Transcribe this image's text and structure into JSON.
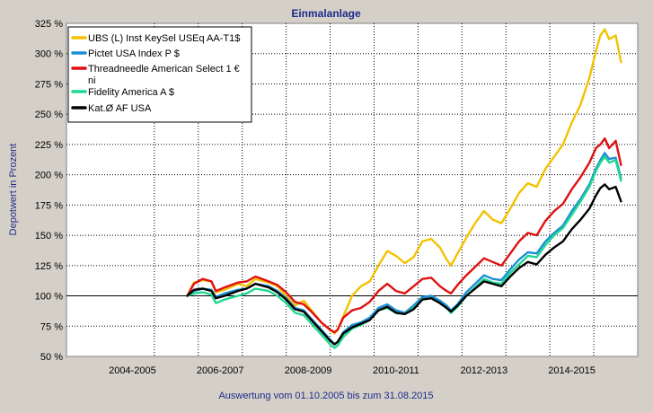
{
  "chart_data": {
    "type": "line",
    "title": "Einmalanlage",
    "subtitle": "Auswertung vom 01.10.2005 bis zum 31.08.2015",
    "ylabel": "Depotwert in Prozent",
    "xlabel": "",
    "ylim": [
      50,
      325
    ],
    "yticks": [
      50,
      75,
      100,
      125,
      150,
      175,
      200,
      225,
      250,
      275,
      300,
      325
    ],
    "ytick_labels": [
      "50 %",
      "75 %",
      "100 %",
      "125 %",
      "150 %",
      "175 %",
      "200 %",
      "225 %",
      "250 %",
      "275 %",
      "300 %",
      "325 %"
    ],
    "xlim": [
      2003.0,
      2016.0
    ],
    "x_gridlines": [
      2005,
      2006,
      2007,
      2008,
      2009,
      2010,
      2011,
      2012,
      2013,
      2014,
      2015
    ],
    "x_period_labels": [
      {
        "label": "2004-2005",
        "center": 2004.5
      },
      {
        "label": "2006-2007",
        "center": 2006.5
      },
      {
        "label": "2008-2009",
        "center": 2008.5
      },
      {
        "label": "2010-2011",
        "center": 2010.5
      },
      {
        "label": "2012-2013",
        "center": 2012.5
      },
      {
        "label": "2014-2015",
        "center": 2014.5
      }
    ],
    "baseline": 100,
    "grid": true,
    "legend_position": "top-left",
    "series": [
      {
        "name": "UBS (L) Inst KeySel USEq AA-T1$",
        "color": "#f2c200",
        "x": [
          2005.75,
          2005.9,
          2006.1,
          2006.3,
          2006.4,
          2006.6,
          2006.9,
          2007.1,
          2007.3,
          2007.6,
          2007.8,
          2008.0,
          2008.2,
          2008.4,
          2008.6,
          2008.8,
          2009.0,
          2009.1,
          2009.17,
          2009.3,
          2009.5,
          2009.7,
          2009.9,
          2010.1,
          2010.3,
          2010.5,
          2010.7,
          2010.9,
          2011.1,
          2011.3,
          2011.5,
          2011.65,
          2011.75,
          2011.9,
          2012.1,
          2012.3,
          2012.5,
          2012.7,
          2012.9,
          2013.1,
          2013.3,
          2013.5,
          2013.7,
          2013.9,
          2014.1,
          2014.3,
          2014.5,
          2014.7,
          2014.9,
          2015.05,
          2015.15,
          2015.25,
          2015.35,
          2015.5,
          2015.62
        ],
        "values": [
          100,
          111,
          113,
          112,
          103,
          105,
          110,
          108,
          114,
          111,
          108,
          100,
          92,
          96,
          87,
          78,
          72,
          69,
          72,
          83,
          100,
          108,
          112,
          125,
          137,
          133,
          127,
          132,
          145,
          147,
          140,
          130,
          125,
          135,
          148,
          160,
          170,
          163,
          160,
          172,
          185,
          193,
          190,
          205,
          215,
          225,
          243,
          258,
          280,
          302,
          315,
          320,
          312,
          315,
          293
        ]
      },
      {
        "name": "Pictet USA Index P $",
        "color": "#1a8fd6",
        "x": [
          2005.75,
          2005.9,
          2006.1,
          2006.3,
          2006.4,
          2006.6,
          2006.9,
          2007.1,
          2007.3,
          2007.6,
          2007.8,
          2008.0,
          2008.2,
          2008.4,
          2008.6,
          2008.8,
          2009.0,
          2009.1,
          2009.17,
          2009.3,
          2009.5,
          2009.7,
          2009.9,
          2010.1,
          2010.3,
          2010.5,
          2010.7,
          2010.9,
          2011.1,
          2011.3,
          2011.5,
          2011.65,
          2011.75,
          2011.9,
          2012.1,
          2012.3,
          2012.5,
          2012.7,
          2012.9,
          2013.1,
          2013.3,
          2013.5,
          2013.7,
          2013.9,
          2014.1,
          2014.3,
          2014.5,
          2014.7,
          2014.9,
          2015.05,
          2015.15,
          2015.25,
          2015.35,
          2015.5,
          2015.62
        ],
        "values": [
          100,
          104,
          106,
          105,
          99,
          102,
          105,
          106,
          110,
          108,
          104,
          98,
          90,
          88,
          80,
          72,
          64,
          60,
          62,
          70,
          76,
          78,
          82,
          90,
          93,
          88,
          86,
          92,
          99,
          100,
          96,
          92,
          88,
          93,
          103,
          110,
          117,
          114,
          113,
          122,
          130,
          136,
          135,
          145,
          152,
          158,
          170,
          180,
          192,
          205,
          212,
          218,
          213,
          214,
          197
        ]
      },
      {
        "name": "Threadneedle American Select 1 € ni",
        "color": "#e01010",
        "x": [
          2005.75,
          2005.9,
          2006.1,
          2006.3,
          2006.4,
          2006.6,
          2006.9,
          2007.1,
          2007.3,
          2007.6,
          2007.8,
          2008.0,
          2008.2,
          2008.4,
          2008.6,
          2008.8,
          2009.0,
          2009.1,
          2009.17,
          2009.3,
          2009.5,
          2009.7,
          2009.9,
          2010.1,
          2010.3,
          2010.5,
          2010.7,
          2010.9,
          2011.1,
          2011.3,
          2011.5,
          2011.65,
          2011.75,
          2011.9,
          2012.1,
          2012.3,
          2012.5,
          2012.7,
          2012.9,
          2013.1,
          2013.3,
          2013.5,
          2013.7,
          2013.9,
          2014.1,
          2014.3,
          2014.5,
          2014.7,
          2014.9,
          2015.05,
          2015.15,
          2015.25,
          2015.35,
          2015.5,
          2015.62
        ],
        "values": [
          100,
          110,
          114,
          112,
          104,
          107,
          111,
          112,
          116,
          112,
          109,
          103,
          95,
          93,
          86,
          78,
          72,
          70,
          72,
          82,
          88,
          90,
          95,
          104,
          110,
          104,
          102,
          108,
          114,
          115,
          108,
          104,
          102,
          109,
          117,
          124,
          131,
          128,
          125,
          135,
          145,
          152,
          150,
          162,
          170,
          176,
          188,
          198,
          210,
          222,
          225,
          230,
          222,
          228,
          208
        ]
      },
      {
        "name": "Fidelity America A $",
        "color": "#20d890",
        "x": [
          2005.75,
          2005.9,
          2006.1,
          2006.3,
          2006.4,
          2006.6,
          2006.9,
          2007.1,
          2007.3,
          2007.6,
          2007.8,
          2008.0,
          2008.2,
          2008.4,
          2008.6,
          2008.8,
          2009.0,
          2009.1,
          2009.17,
          2009.3,
          2009.5,
          2009.7,
          2009.9,
          2010.1,
          2010.3,
          2010.5,
          2010.7,
          2010.9,
          2011.1,
          2011.3,
          2011.5,
          2011.65,
          2011.75,
          2011.9,
          2012.1,
          2012.3,
          2012.5,
          2012.7,
          2012.9,
          2013.1,
          2013.3,
          2013.5,
          2013.7,
          2013.9,
          2014.1,
          2014.3,
          2014.5,
          2014.7,
          2014.9,
          2015.05,
          2015.15,
          2015.25,
          2015.35,
          2015.5,
          2015.62
        ],
        "values": [
          100,
          102,
          103,
          101,
          94,
          97,
          100,
          102,
          106,
          104,
          100,
          94,
          86,
          84,
          76,
          68,
          60,
          57,
          59,
          66,
          73,
          76,
          80,
          88,
          90,
          86,
          85,
          90,
          97,
          98,
          94,
          90,
          86,
          91,
          100,
          107,
          114,
          111,
          110,
          119,
          126,
          133,
          132,
          142,
          150,
          156,
          167,
          178,
          190,
          203,
          210,
          215,
          210,
          212,
          195
        ]
      },
      {
        "name": "Kat.Ø AF USA",
        "color": "#000000",
        "x": [
          2005.75,
          2005.9,
          2006.1,
          2006.3,
          2006.4,
          2006.6,
          2006.9,
          2007.1,
          2007.3,
          2007.6,
          2007.8,
          2008.0,
          2008.2,
          2008.4,
          2008.6,
          2008.8,
          2009.0,
          2009.1,
          2009.17,
          2009.3,
          2009.5,
          2009.7,
          2009.9,
          2010.1,
          2010.3,
          2010.5,
          2010.7,
          2010.9,
          2011.1,
          2011.3,
          2011.5,
          2011.65,
          2011.75,
          2011.9,
          2012.1,
          2012.3,
          2012.5,
          2012.7,
          2012.9,
          2013.1,
          2013.3,
          2013.5,
          2013.7,
          2013.9,
          2014.1,
          2014.3,
          2014.5,
          2014.7,
          2014.9,
          2015.05,
          2015.15,
          2015.25,
          2015.35,
          2015.5,
          2015.62
        ],
        "values": [
          100,
          105,
          106,
          104,
          98,
          100,
          104,
          106,
          110,
          107,
          103,
          97,
          89,
          87,
          79,
          71,
          63,
          60,
          62,
          69,
          74,
          77,
          80,
          88,
          91,
          86,
          85,
          89,
          97,
          98,
          94,
          90,
          87,
          92,
          100,
          106,
          112,
          110,
          108,
          116,
          123,
          128,
          126,
          134,
          140,
          145,
          155,
          163,
          172,
          183,
          189,
          192,
          188,
          190,
          178
        ]
      }
    ]
  }
}
